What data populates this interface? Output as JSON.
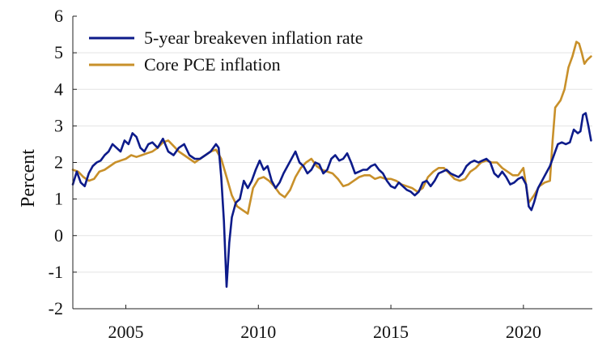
{
  "chart_data": {
    "type": "line",
    "title": "",
    "xlabel": "",
    "ylabel": "Percent",
    "xlim": [
      2003.0,
      2022.6
    ],
    "ylim": [
      -2,
      6
    ],
    "xticks": [
      2005,
      2010,
      2015,
      2020
    ],
    "yticks": [
      -2,
      -1,
      0,
      1,
      2,
      3,
      4,
      5,
      6
    ],
    "grid": "horizontal",
    "legend_position": "top-left",
    "series": [
      {
        "name": "5-year breakeven inflation rate",
        "color": "#0d1b8a",
        "x": [
          2003.0,
          2003.15,
          2003.3,
          2003.45,
          2003.6,
          2003.75,
          2003.9,
          2004.05,
          2004.2,
          2004.35,
          2004.5,
          2004.65,
          2004.8,
          2004.95,
          2005.1,
          2005.25,
          2005.4,
          2005.55,
          2005.7,
          2005.85,
          2006.0,
          2006.2,
          2006.4,
          2006.6,
          2006.8,
          2007.0,
          2007.2,
          2007.4,
          2007.6,
          2007.8,
          2008.0,
          2008.2,
          2008.4,
          2008.5,
          2008.6,
          2008.7,
          2008.8,
          2008.9,
          2009.0,
          2009.15,
          2009.3,
          2009.45,
          2009.6,
          2009.75,
          2009.9,
          2010.05,
          2010.2,
          2010.35,
          2010.5,
          2010.65,
          2010.8,
          2010.95,
          2011.1,
          2011.25,
          2011.4,
          2011.55,
          2011.7,
          2011.85,
          2012.0,
          2012.15,
          2012.3,
          2012.45,
          2012.6,
          2012.75,
          2012.9,
          2013.05,
          2013.2,
          2013.35,
          2013.5,
          2013.65,
          2013.8,
          2013.95,
          2014.1,
          2014.25,
          2014.4,
          2014.55,
          2014.7,
          2014.85,
          2015.0,
          2015.15,
          2015.3,
          2015.45,
          2015.6,
          2015.75,
          2015.9,
          2016.05,
          2016.2,
          2016.35,
          2016.5,
          2016.65,
          2016.8,
          2016.95,
          2017.1,
          2017.25,
          2017.4,
          2017.55,
          2017.7,
          2017.85,
          2018.0,
          2018.15,
          2018.3,
          2018.45,
          2018.6,
          2018.75,
          2018.9,
          2019.05,
          2019.2,
          2019.35,
          2019.5,
          2019.65,
          2019.8,
          2019.95,
          2020.1,
          2020.2,
          2020.3,
          2020.4,
          2020.55,
          2020.7,
          2020.85,
          2021.0,
          2021.15,
          2021.3,
          2021.45,
          2021.6,
          2021.75,
          2021.9,
          2022.05,
          2022.15,
          2022.25,
          2022.35,
          2022.45,
          2022.55
        ],
        "y": [
          1.4,
          1.75,
          1.45,
          1.35,
          1.7,
          1.9,
          2.0,
          2.05,
          2.2,
          2.3,
          2.5,
          2.4,
          2.3,
          2.6,
          2.5,
          2.8,
          2.7,
          2.4,
          2.3,
          2.5,
          2.55,
          2.4,
          2.65,
          2.3,
          2.2,
          2.4,
          2.5,
          2.2,
          2.1,
          2.1,
          2.2,
          2.3,
          2.5,
          2.4,
          1.6,
          0.4,
          -1.4,
          -0.2,
          0.5,
          0.9,
          1.0,
          1.5,
          1.3,
          1.5,
          1.8,
          2.05,
          1.8,
          1.9,
          1.5,
          1.3,
          1.45,
          1.7,
          1.9,
          2.1,
          2.3,
          2.0,
          1.9,
          1.7,
          1.8,
          2.0,
          1.95,
          1.7,
          1.8,
          2.1,
          2.2,
          2.05,
          2.1,
          2.25,
          2.0,
          1.7,
          1.75,
          1.8,
          1.8,
          1.9,
          1.95,
          1.8,
          1.7,
          1.5,
          1.35,
          1.3,
          1.45,
          1.35,
          1.25,
          1.2,
          1.1,
          1.2,
          1.45,
          1.5,
          1.35,
          1.5,
          1.7,
          1.75,
          1.8,
          1.7,
          1.65,
          1.6,
          1.7,
          1.9,
          2.0,
          2.05,
          2.0,
          2.05,
          2.1,
          2.0,
          1.7,
          1.6,
          1.75,
          1.6,
          1.4,
          1.45,
          1.55,
          1.6,
          1.4,
          0.8,
          0.7,
          0.9,
          1.3,
          1.5,
          1.7,
          1.9,
          2.2,
          2.5,
          2.55,
          2.5,
          2.55,
          2.9,
          2.8,
          2.85,
          3.3,
          3.35,
          3.0,
          2.6
        ]
      },
      {
        "name": "Core PCE inflation",
        "color": "#c8902a",
        "x": [
          2003.0,
          2003.2,
          2003.4,
          2003.6,
          2003.8,
          2004.0,
          2004.2,
          2004.4,
          2004.6,
          2004.8,
          2005.0,
          2005.2,
          2005.4,
          2005.6,
          2005.8,
          2006.0,
          2006.2,
          2006.4,
          2006.6,
          2006.8,
          2007.0,
          2007.2,
          2007.4,
          2007.6,
          2007.8,
          2008.0,
          2008.2,
          2008.4,
          2008.6,
          2008.8,
          2009.0,
          2009.2,
          2009.4,
          2009.6,
          2009.8,
          2010.0,
          2010.2,
          2010.4,
          2010.6,
          2010.8,
          2011.0,
          2011.2,
          2011.4,
          2011.6,
          2011.8,
          2012.0,
          2012.2,
          2012.4,
          2012.6,
          2012.8,
          2013.0,
          2013.2,
          2013.4,
          2013.6,
          2013.8,
          2014.0,
          2014.2,
          2014.4,
          2014.6,
          2014.8,
          2015.0,
          2015.2,
          2015.4,
          2015.6,
          2015.8,
          2016.0,
          2016.2,
          2016.4,
          2016.6,
          2016.8,
          2017.0,
          2017.2,
          2017.4,
          2017.6,
          2017.8,
          2018.0,
          2018.2,
          2018.4,
          2018.6,
          2018.8,
          2019.0,
          2019.2,
          2019.4,
          2019.6,
          2019.8,
          2020.0,
          2020.2,
          2020.4,
          2020.6,
          2020.8,
          2021.0,
          2021.1,
          2021.2,
          2021.3,
          2021.4,
          2021.55,
          2021.7,
          2021.85,
          2022.0,
          2022.1,
          2022.2,
          2022.3,
          2022.4,
          2022.55
        ],
        "y": [
          1.8,
          1.75,
          1.6,
          1.5,
          1.55,
          1.75,
          1.8,
          1.9,
          2.0,
          2.05,
          2.1,
          2.2,
          2.15,
          2.2,
          2.25,
          2.3,
          2.4,
          2.55,
          2.6,
          2.45,
          2.3,
          2.2,
          2.1,
          2.0,
          2.1,
          2.2,
          2.3,
          2.35,
          2.1,
          1.6,
          1.1,
          0.8,
          0.7,
          0.6,
          1.3,
          1.55,
          1.6,
          1.5,
          1.35,
          1.15,
          1.05,
          1.25,
          1.6,
          1.85,
          2.0,
          2.1,
          1.9,
          1.8,
          1.75,
          1.7,
          1.55,
          1.35,
          1.4,
          1.5,
          1.6,
          1.65,
          1.65,
          1.55,
          1.6,
          1.55,
          1.55,
          1.5,
          1.4,
          1.35,
          1.3,
          1.2,
          1.3,
          1.6,
          1.75,
          1.85,
          1.85,
          1.7,
          1.55,
          1.5,
          1.55,
          1.75,
          1.85,
          2.0,
          2.05,
          2.0,
          2.0,
          1.85,
          1.75,
          1.65,
          1.65,
          1.85,
          0.9,
          1.1,
          1.35,
          1.45,
          1.5,
          2.6,
          3.5,
          3.6,
          3.7,
          4.0,
          4.6,
          4.9,
          5.3,
          5.25,
          5.0,
          4.7,
          4.8,
          4.9
        ]
      }
    ]
  }
}
